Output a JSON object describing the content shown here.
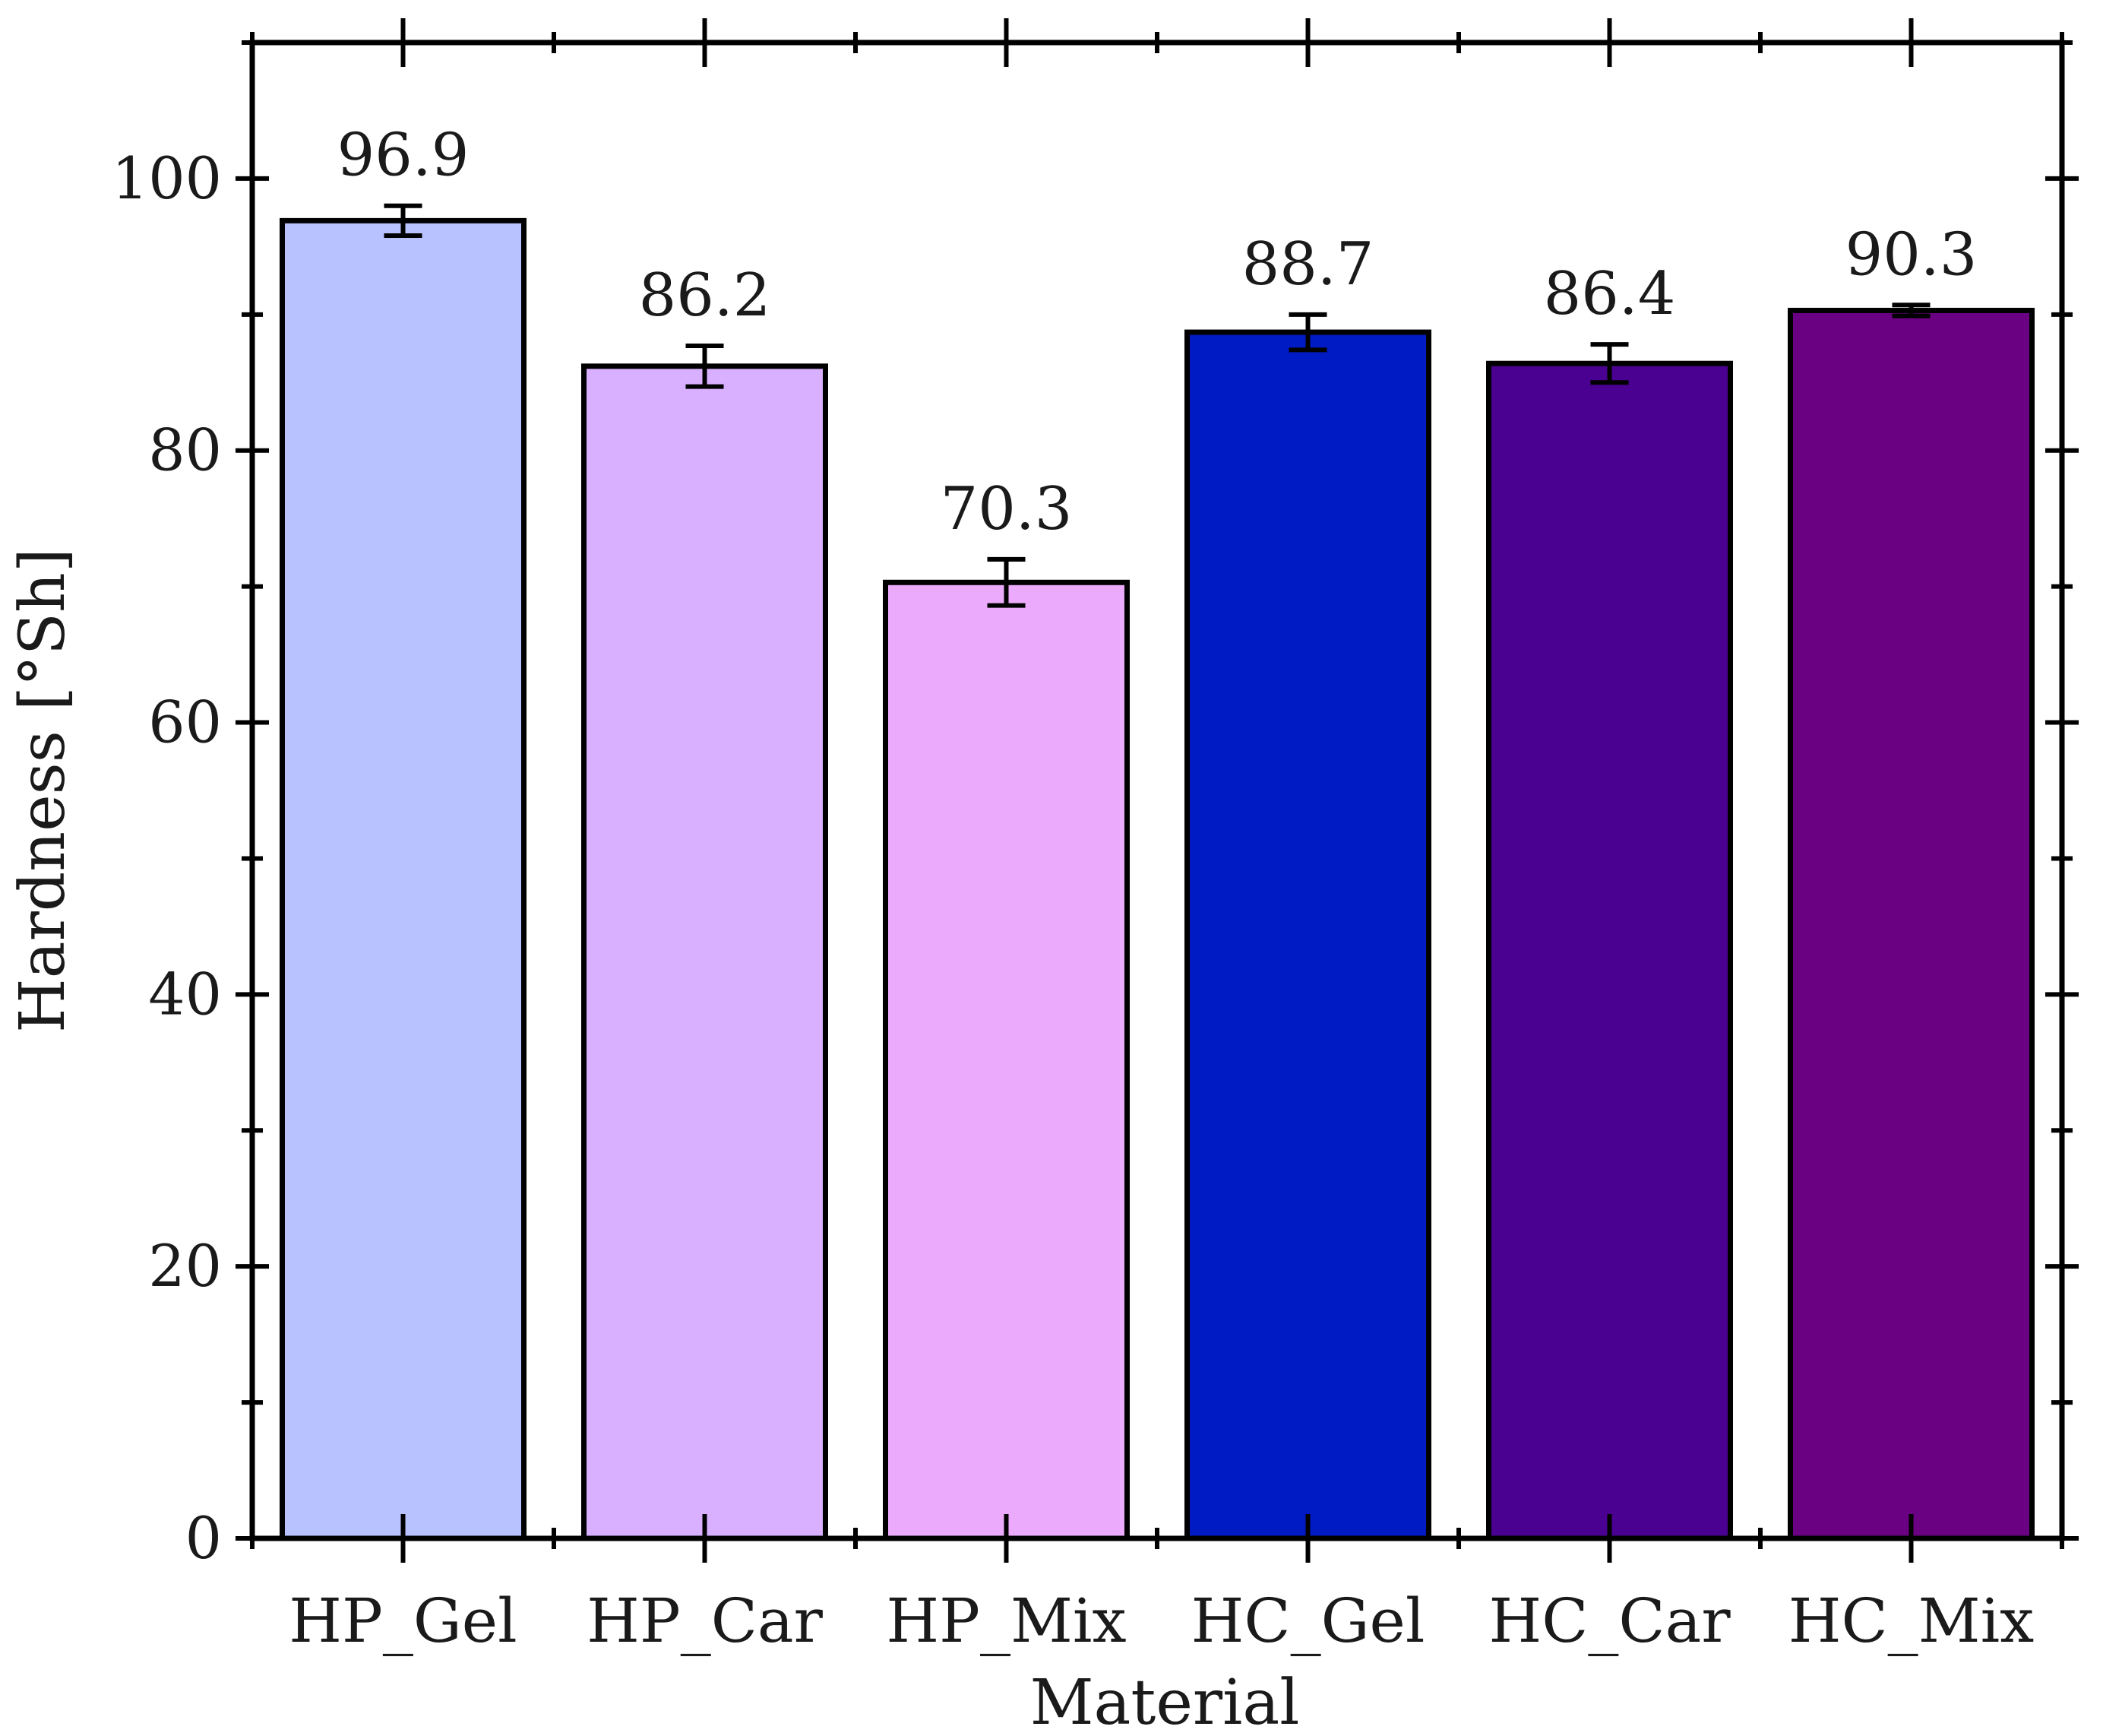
{
  "chart_data": {
    "type": "bar",
    "title": "",
    "xlabel": "Material",
    "ylabel": "Hardness [°Sh]",
    "ylim": [
      0,
      110
    ],
    "yticks": [
      0,
      20,
      40,
      60,
      80,
      100
    ],
    "yticklabels": [
      "0",
      "20",
      "40",
      "60",
      "80",
      "100"
    ],
    "categories": [
      "HP_Gel",
      "HP_Car",
      "HP_Mix",
      "HC_Gel",
      "HC_Car",
      "HC_Mix"
    ],
    "values": [
      96.9,
      86.2,
      70.3,
      88.7,
      86.4,
      90.3
    ],
    "value_labels": [
      "96.9",
      "86.2",
      "70.3",
      "88.7",
      "86.4",
      "90.3"
    ],
    "errors": [
      1.1,
      1.5,
      1.7,
      1.3,
      1.4,
      0.4
    ],
    "colors": [
      "#b8c2ff",
      "#d8b0ff",
      "#ecaafc",
      "#001ac4",
      "#4a0090",
      "#6a0082"
    ],
    "grid": false,
    "legend": "none"
  }
}
